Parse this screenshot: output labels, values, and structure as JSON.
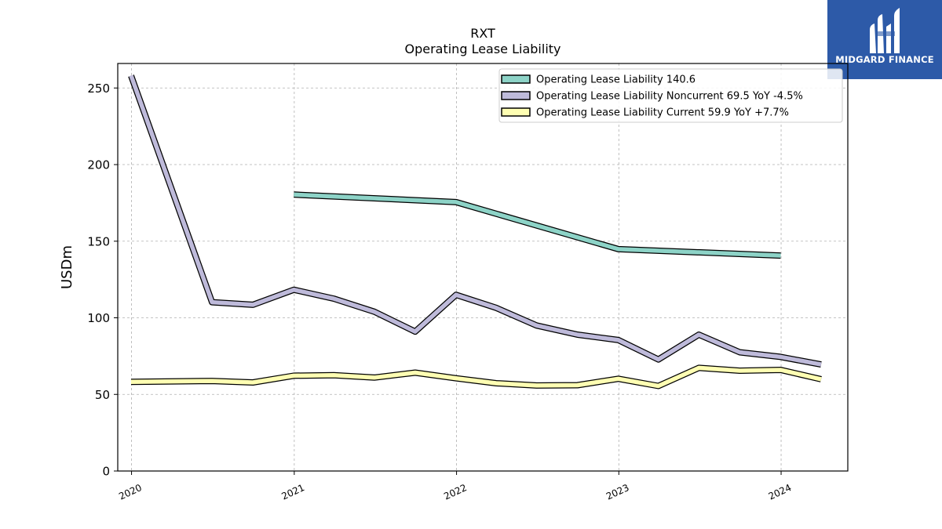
{
  "brand": {
    "name": "MIDGARD FINANCE",
    "background": "#2d5aa8"
  },
  "chart_data": {
    "type": "line",
    "title": "RXT",
    "subtitle": "Operating Lease Liability",
    "ylabel": "USDm",
    "xlabel": "",
    "ylim": [
      0,
      266
    ],
    "yticks": [
      0,
      50,
      100,
      150,
      200,
      250
    ],
    "xticks": [
      "2020",
      "2021",
      "2022",
      "2023",
      "2024"
    ],
    "grid": true,
    "legend_position": "top-right",
    "series": [
      {
        "name": "Operating Lease Liability",
        "legend_label": "Operating Lease Liability  140.6",
        "color": "#8dd3c7",
        "points": [
          [
            "2020-12-31",
            180.4
          ],
          [
            "2021-12-31",
            175.5
          ],
          [
            "2022-12-31",
            144.8
          ],
          [
            "2023-12-31",
            140.6
          ]
        ]
      },
      {
        "name": "Operating Lease Liability Noncurrent",
        "legend_label": "Operating Lease Liability Noncurrent  69.5 YoY -4.5%",
        "color": "#bebada",
        "points": [
          [
            "2019-12-31",
            258.0
          ],
          [
            "2020-06-30",
            110.2
          ],
          [
            "2020-09-30",
            108.5
          ],
          [
            "2020-12-31",
            118.3
          ],
          [
            "2021-03-31",
            112.5
          ],
          [
            "2021-06-30",
            104.0
          ],
          [
            "2021-09-30",
            91.0
          ],
          [
            "2021-12-31",
            115.0
          ],
          [
            "2022-03-31",
            106.5
          ],
          [
            "2022-06-30",
            95.0
          ],
          [
            "2022-09-30",
            89.0
          ],
          [
            "2022-12-31",
            85.5
          ],
          [
            "2023-03-31",
            72.8
          ],
          [
            "2023-06-30",
            89.0
          ],
          [
            "2023-09-30",
            77.5
          ],
          [
            "2023-12-31",
            74.5
          ],
          [
            "2024-03-31",
            69.5
          ]
        ]
      },
      {
        "name": "Operating Lease Liability Current",
        "legend_label": "Operating Lease Liability Current  59.9 YoY +7.7%",
        "color": "#ffffb3",
        "points": [
          [
            "2019-12-31",
            58.2
          ],
          [
            "2020-06-30",
            58.8
          ],
          [
            "2020-09-30",
            57.8
          ],
          [
            "2020-12-31",
            62.2
          ],
          [
            "2021-03-31",
            62.5
          ],
          [
            "2021-06-30",
            61.0
          ],
          [
            "2021-09-30",
            64.2
          ],
          [
            "2021-12-31",
            60.5
          ],
          [
            "2022-03-31",
            57.3
          ],
          [
            "2022-06-30",
            55.8
          ],
          [
            "2022-09-30",
            56.0
          ],
          [
            "2022-12-31",
            60.2
          ],
          [
            "2023-03-31",
            55.5
          ],
          [
            "2023-06-30",
            67.3
          ],
          [
            "2023-09-30",
            65.5
          ],
          [
            "2023-12-31",
            66.0
          ],
          [
            "2024-03-31",
            59.9
          ]
        ]
      }
    ]
  }
}
